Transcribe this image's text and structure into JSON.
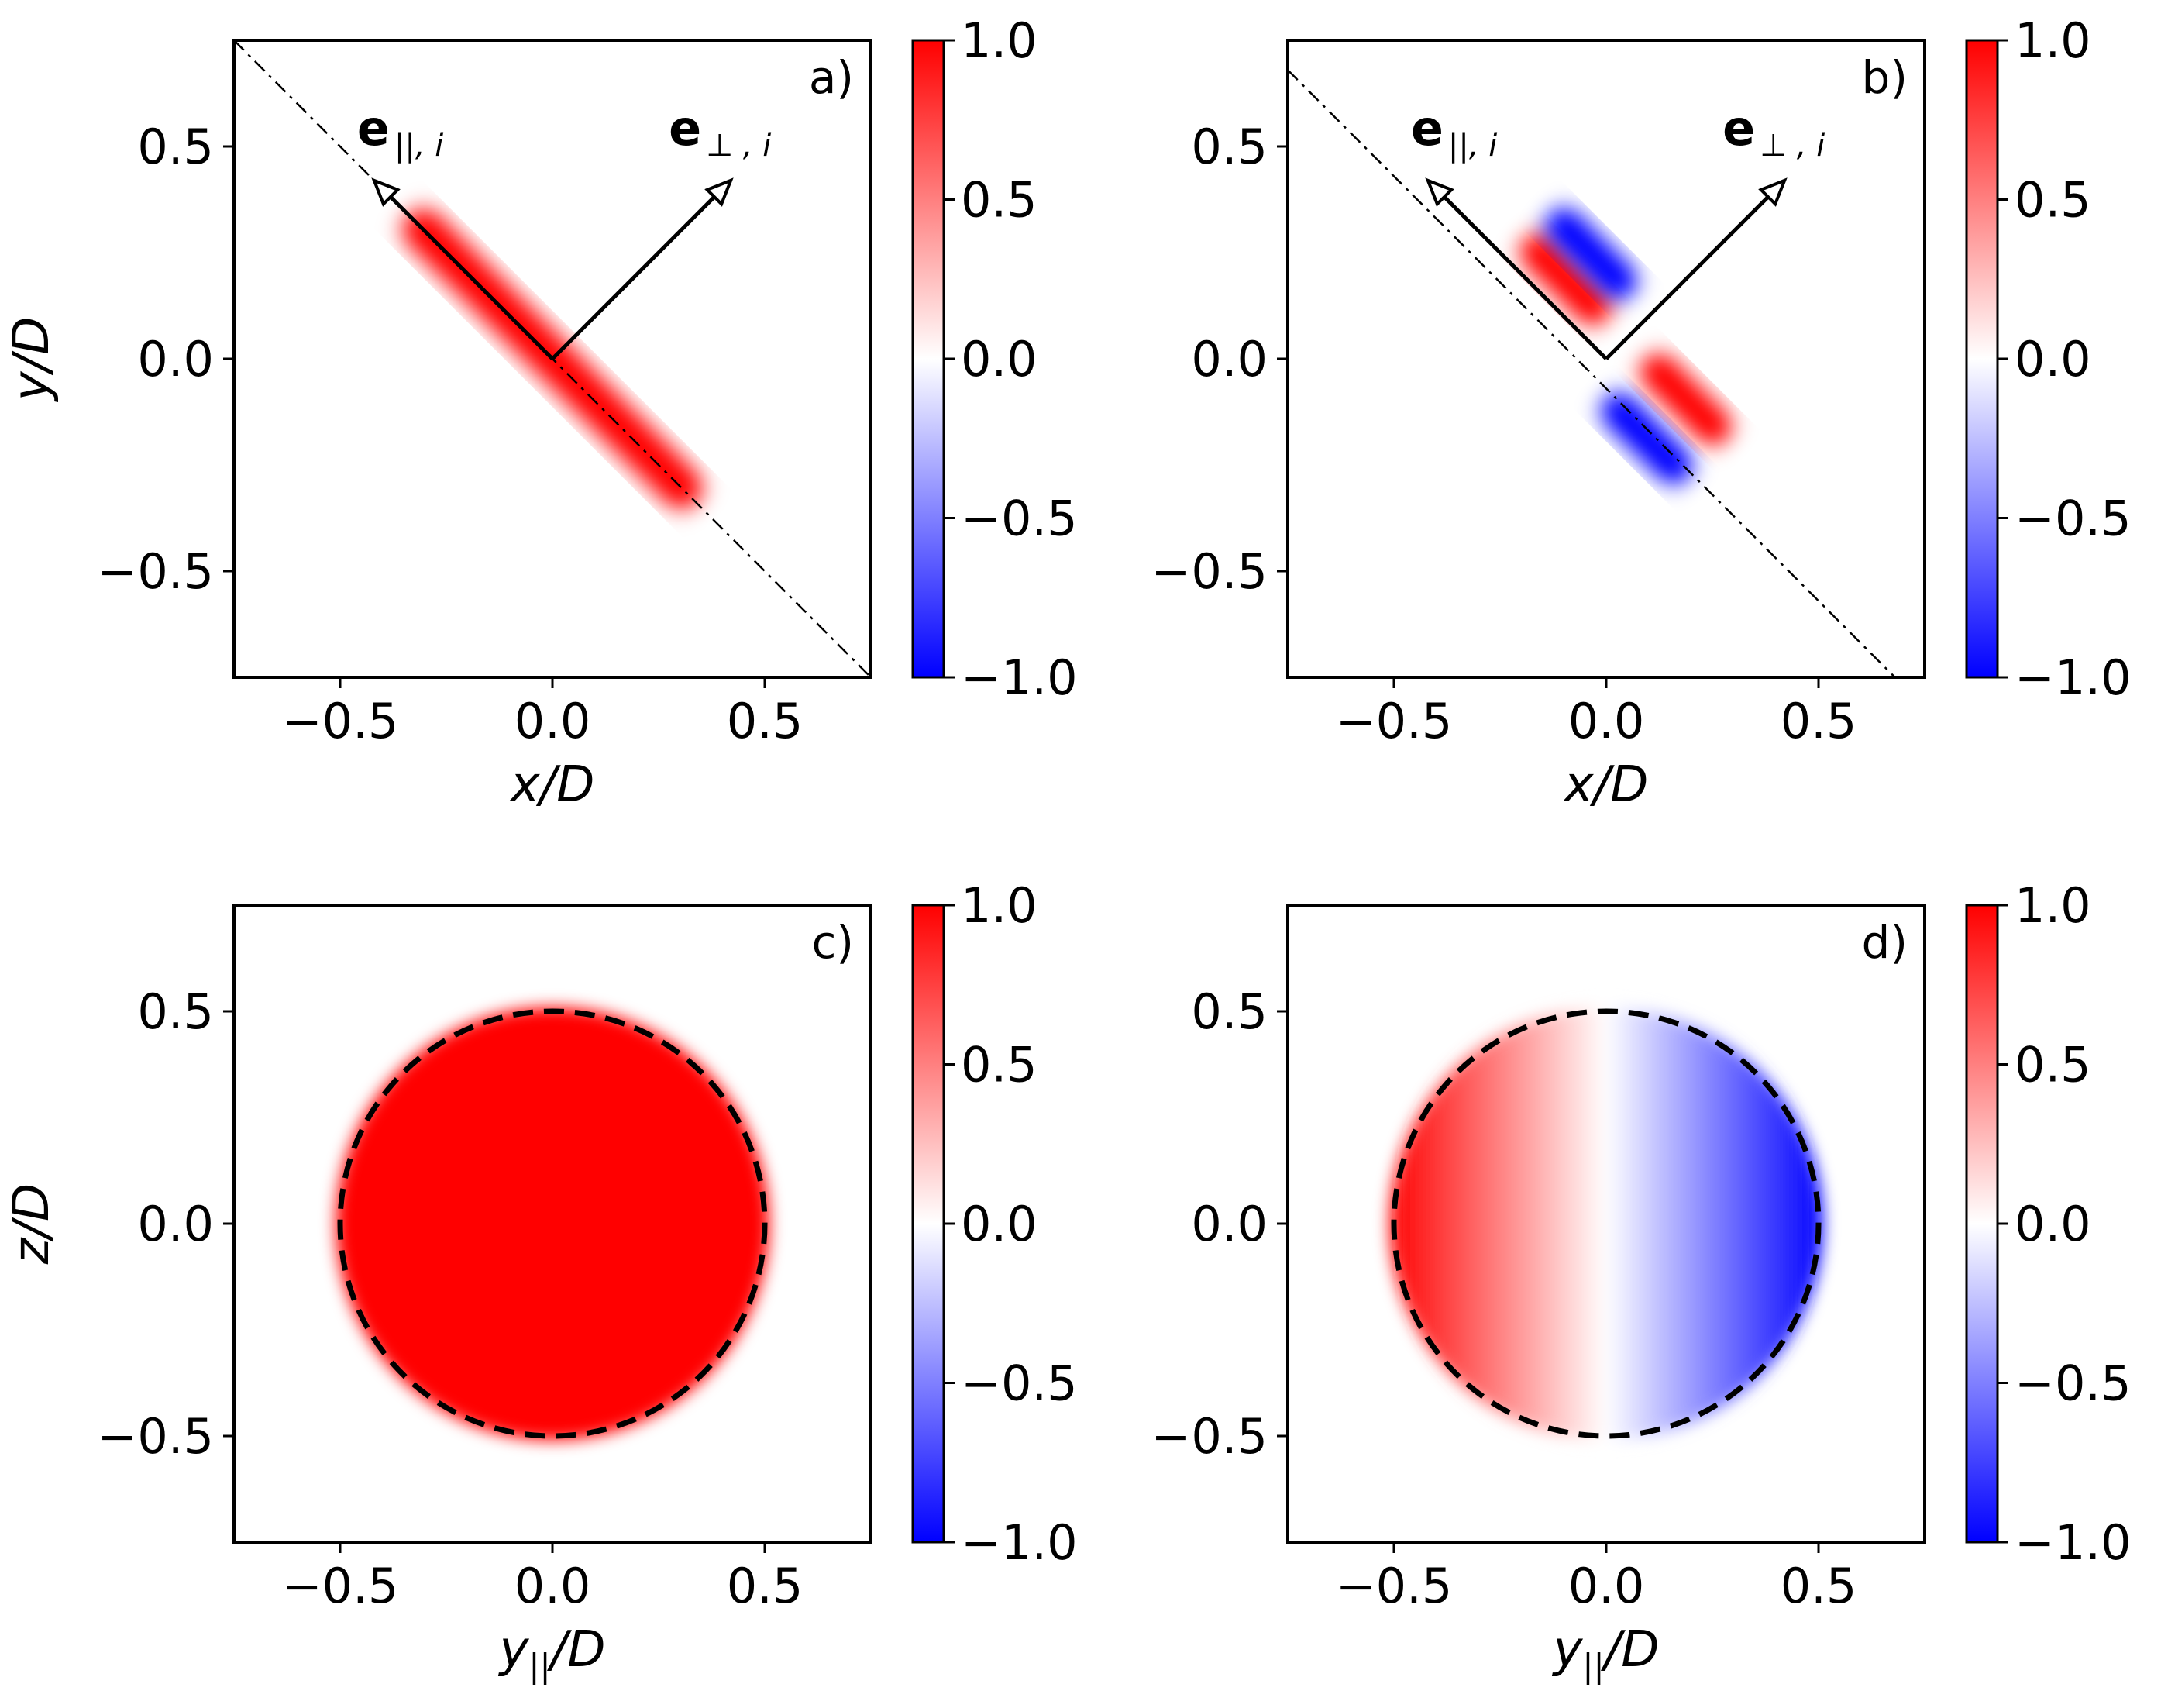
{
  "chart_data": [
    {
      "type": "heatmap",
      "panel_label": "a)",
      "xlabel": "x/D",
      "ylabel": "y/D",
      "xlim": [
        -0.75,
        0.75
      ],
      "ylim": [
        -0.75,
        0.75
      ],
      "xticks": [
        -0.5,
        0.0,
        0.5
      ],
      "yticks": [
        -0.5,
        0.0,
        0.5
      ],
      "xtick_labels": [
        "−0.5",
        "0.0",
        "0.5"
      ],
      "ytick_labels": [
        "−0.5",
        "0.0",
        "0.5"
      ],
      "colormap": "bwr",
      "colorbar": {
        "range": [
          -1.0,
          1.0
        ],
        "ticks": [
          1.0,
          0.5,
          0.0,
          -0.5,
          -1.0
        ],
        "labels": [
          "1.0",
          "0.5",
          "0.0",
          "−0.5",
          "−1.0"
        ]
      },
      "field": "positive band along e_parallel, value 1.0, extent -0.5 to 0.5 along the dash-dot line",
      "reference_line": {
        "style": "dash-dot",
        "from": [
          -0.75,
          0.75
        ],
        "to": [
          0.75,
          -0.75
        ]
      },
      "vectors": [
        {
          "name": "e_parallel",
          "bold": "e",
          "sub": "||, i",
          "from": [
            0,
            0
          ],
          "to": [
            -0.42,
            0.42
          ]
        },
        {
          "name": "e_perp",
          "bold": "e",
          "sub": "⊥ , i",
          "from": [
            0,
            0
          ],
          "to": [
            0.42,
            0.42
          ]
        }
      ]
    },
    {
      "type": "heatmap",
      "panel_label": "b)",
      "xlabel": "x/D",
      "ylabel": "",
      "xlim": [
        -0.75,
        0.75
      ],
      "ylim": [
        -0.75,
        0.75
      ],
      "xticks": [
        -0.5,
        0.0,
        0.5
      ],
      "yticks": [
        -0.5,
        0.0,
        0.5
      ],
      "xtick_labels": [
        "−0.5",
        "0.0",
        "0.5"
      ],
      "ytick_labels": [
        "−0.5",
        "0.0",
        "0.5"
      ],
      "colormap": "bwr",
      "colorbar": {
        "range": [
          -1.0,
          1.0
        ],
        "ticks": [
          1.0,
          0.5,
          0.0,
          -0.5,
          -1.0
        ],
        "labels": [
          "1.0",
          "0.5",
          "0.0",
          "−0.5",
          "−1.0"
        ]
      },
      "field": "antisymmetric dipole band: red/blue pair near upper-left, reversed red/blue pair near lower-right",
      "reference_line": {
        "style": "dash-dot",
        "from": [
          -0.75,
          0.68
        ],
        "to": [
          0.68,
          -0.75
        ]
      },
      "vectors": [
        {
          "name": "e_parallel",
          "bold": "e",
          "sub": "||, i",
          "from": [
            0,
            0
          ],
          "to": [
            -0.42,
            0.42
          ]
        },
        {
          "name": "e_perp",
          "bold": "e",
          "sub": "⊥ , i",
          "from": [
            0,
            0
          ],
          "to": [
            0.42,
            0.42
          ]
        }
      ]
    },
    {
      "type": "heatmap",
      "panel_label": "c)",
      "xlabel": "y||/D",
      "ylabel": "z/D",
      "xlim": [
        -0.75,
        0.75
      ],
      "ylim": [
        -0.75,
        0.75
      ],
      "xticks": [
        -0.5,
        0.0,
        0.5
      ],
      "yticks": [
        -0.5,
        0.0,
        0.5
      ],
      "xtick_labels": [
        "−0.5",
        "0.0",
        "0.5"
      ],
      "ytick_labels": [
        "−0.5",
        "0.0",
        "0.5"
      ],
      "colormap": "bwr",
      "colorbar": {
        "range": [
          -1.0,
          1.0
        ],
        "ticks": [
          1.0,
          0.5,
          0.0,
          -0.5,
          -1.0
        ],
        "labels": [
          "1.0",
          "0.5",
          "0.0",
          "−0.5",
          "−1.0"
        ]
      },
      "field": "uniform disk of value 1.0, radius 0.5",
      "reference_circle": {
        "style": "dashed",
        "center": [
          0,
          0
        ],
        "radius": 0.5
      }
    },
    {
      "type": "heatmap",
      "panel_label": "d)",
      "xlabel": "y||/D",
      "ylabel": "",
      "xlim": [
        -0.75,
        0.75
      ],
      "ylim": [
        -0.75,
        0.75
      ],
      "xticks": [
        -0.5,
        0.0,
        0.5
      ],
      "yticks": [
        -0.5,
        0.0,
        0.5
      ],
      "xtick_labels": [
        "−0.5",
        "0.0",
        "0.5"
      ],
      "ytick_labels": [
        "−0.5",
        "0.0",
        "0.5"
      ],
      "colormap": "bwr",
      "colorbar": {
        "range": [
          -1.0,
          1.0
        ],
        "ticks": [
          1.0,
          0.5,
          0.0,
          -0.5,
          -1.0
        ],
        "labels": [
          "1.0",
          "0.5",
          "0.0",
          "−0.5",
          "−1.0"
        ]
      },
      "field": "disk of radius 0.5, value linear in -y||: red (+1) at left edge, white at centre, blue (-1) at right edge",
      "reference_circle": {
        "style": "dashed",
        "center": [
          0,
          0
        ],
        "radius": 0.5
      }
    }
  ],
  "colors": {
    "positive": "#ff0000",
    "neutral": "#ffffff",
    "negative": "#0000ff",
    "ink": "#000000"
  }
}
